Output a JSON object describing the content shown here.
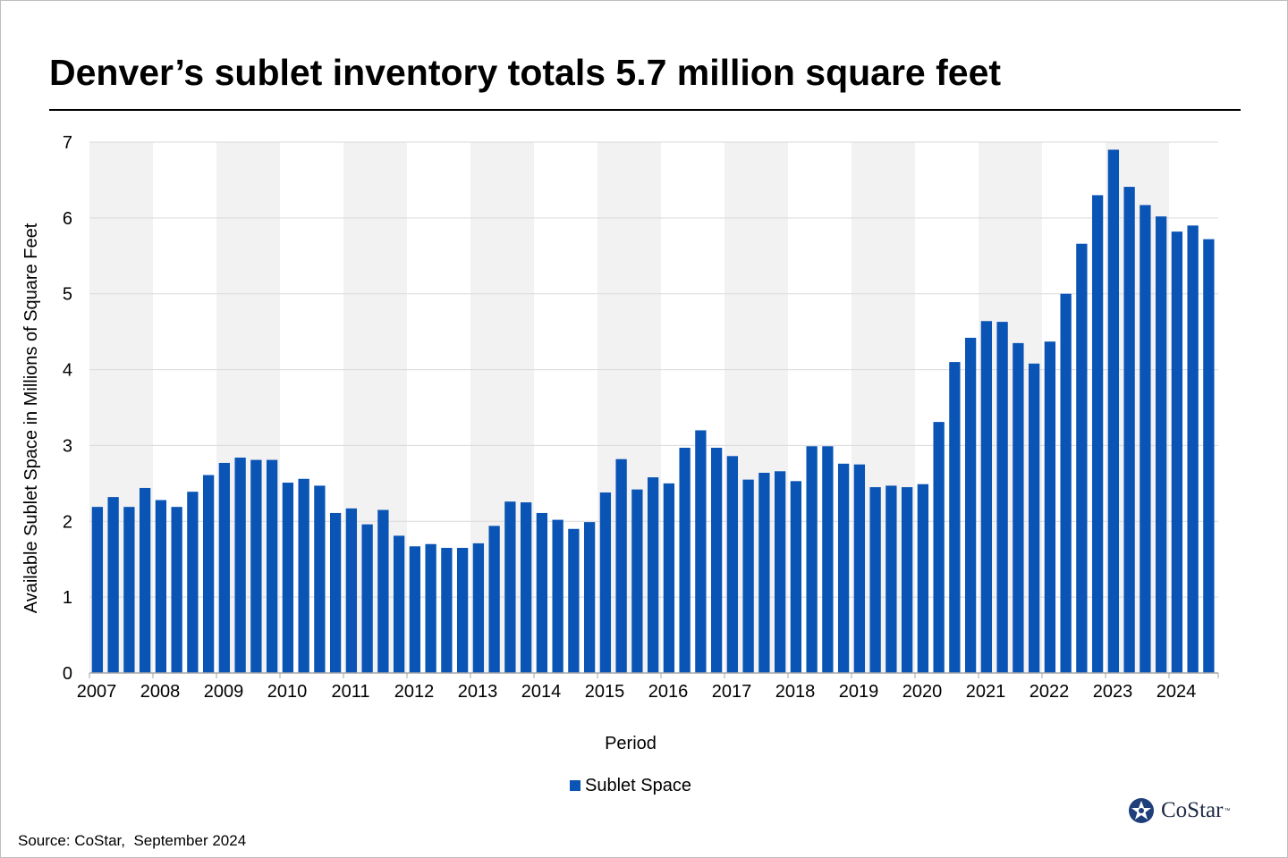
{
  "title": "Denver’s sublet inventory totals 5.7 million square feet",
  "source": "Source: CoStar,  September 2024",
  "logo": {
    "text": "CoStar",
    "tm": "™"
  },
  "colors": {
    "bar": "#0a54b5",
    "band": "#f2f2f2",
    "grid": "#d9d9d9",
    "axis": "#a6a6a6",
    "logo": "#1f2a44"
  },
  "chart_data": {
    "type": "bar",
    "title": "Denver’s sublet inventory totals 5.7 million square feet",
    "xlabel": "Period",
    "ylabel": "Available Sublet Space in Millions of Square Feet",
    "ylim": [
      0,
      7
    ],
    "yticks": [
      "0",
      "1",
      "2",
      "3",
      "4",
      "5",
      "6",
      "7"
    ],
    "years": [
      "2007",
      "2008",
      "2009",
      "2010",
      "2011",
      "2012",
      "2013",
      "2014",
      "2015",
      "2016",
      "2017",
      "2018",
      "2019",
      "2020",
      "2021",
      "2022",
      "2023",
      "2024"
    ],
    "periods_per_year": 4,
    "grid": true,
    "alternating_year_bands": true,
    "legend_position": "bottom",
    "series": [
      {
        "name": "Sublet Space",
        "values": [
          2.19,
          2.32,
          2.19,
          2.44,
          2.28,
          2.19,
          2.39,
          2.61,
          2.77,
          2.84,
          2.81,
          2.81,
          2.51,
          2.56,
          2.47,
          2.11,
          2.17,
          1.96,
          2.15,
          1.81,
          1.67,
          1.7,
          1.65,
          1.65,
          1.71,
          1.94,
          2.26,
          2.25,
          2.11,
          2.02,
          1.9,
          1.99,
          2.38,
          2.82,
          2.42,
          2.58,
          2.5,
          2.97,
          3.2,
          2.97,
          2.86,
          2.55,
          2.64,
          2.66,
          2.53,
          2.99,
          2.99,
          2.76,
          2.75,
          2.45,
          2.47,
          2.45,
          2.49,
          3.31,
          4.1,
          4.42,
          4.64,
          4.63,
          4.35,
          4.08,
          4.37,
          5.0,
          5.66,
          6.3,
          6.9,
          6.41,
          6.17,
          6.02,
          5.82,
          5.9,
          5.72
        ]
      }
    ]
  }
}
